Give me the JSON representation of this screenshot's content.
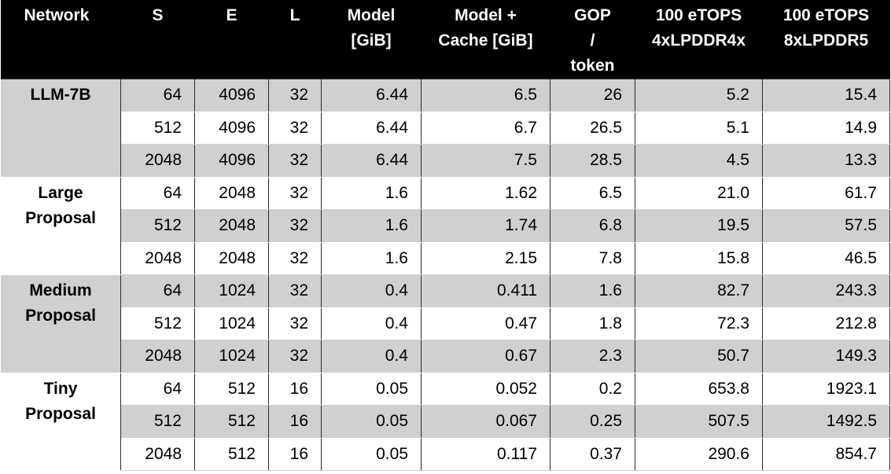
{
  "header": {
    "network": "Network",
    "s": "S",
    "e": "E",
    "l": "L",
    "model": [
      "Model",
      "[GiB]"
    ],
    "model_cache": [
      "Model +",
      "Cache [GiB]"
    ],
    "gop": [
      "GOP",
      "/",
      "token"
    ],
    "lpddr4x": [
      "100 eTOPS",
      "4xLPDDR4x"
    ],
    "lpddr5": [
      "100 eTOPS",
      "8xLPDDR5"
    ]
  },
  "groups": [
    {
      "network": [
        "LLM-7B"
      ],
      "rows": [
        {
          "s": "64",
          "e": "4096",
          "l": "32",
          "model": "6.44",
          "model_cache": "6.5",
          "gop": "26",
          "lpddr4x": "5.2",
          "lpddr5": "15.4"
        },
        {
          "s": "512",
          "e": "4096",
          "l": "32",
          "model": "6.44",
          "model_cache": "6.7",
          "gop": "26.5",
          "lpddr4x": "5.1",
          "lpddr5": "14.9"
        },
        {
          "s": "2048",
          "e": "4096",
          "l": "32",
          "model": "6.44",
          "model_cache": "7.5",
          "gop": "28.5",
          "lpddr4x": "4.5",
          "lpddr5": "13.3"
        }
      ]
    },
    {
      "network": [
        "Large",
        "Proposal"
      ],
      "rows": [
        {
          "s": "64",
          "e": "2048",
          "l": "32",
          "model": "1.6",
          "model_cache": "1.62",
          "gop": "6.5",
          "lpddr4x": "21.0",
          "lpddr5": "61.7"
        },
        {
          "s": "512",
          "e": "2048",
          "l": "32",
          "model": "1.6",
          "model_cache": "1.74",
          "gop": "6.8",
          "lpddr4x": "19.5",
          "lpddr5": "57.5"
        },
        {
          "s": "2048",
          "e": "2048",
          "l": "32",
          "model": "1.6",
          "model_cache": "2.15",
          "gop": "7.8",
          "lpddr4x": "15.8",
          "lpddr5": "46.5"
        }
      ]
    },
    {
      "network": [
        "Medium",
        "Proposal"
      ],
      "rows": [
        {
          "s": "64",
          "e": "1024",
          "l": "32",
          "model": "0.4",
          "model_cache": "0.411",
          "gop": "1.6",
          "lpddr4x": "82.7",
          "lpddr5": "243.3"
        },
        {
          "s": "512",
          "e": "1024",
          "l": "32",
          "model": "0.4",
          "model_cache": "0.47",
          "gop": "1.8",
          "lpddr4x": "72.3",
          "lpddr5": "212.8"
        },
        {
          "s": "2048",
          "e": "1024",
          "l": "32",
          "model": "0.4",
          "model_cache": "0.67",
          "gop": "2.3",
          "lpddr4x": "50.7",
          "lpddr5": "149.3"
        }
      ]
    },
    {
      "network": [
        "Tiny",
        "Proposal"
      ],
      "rows": [
        {
          "s": "64",
          "e": "512",
          "l": "16",
          "model": "0.05",
          "model_cache": "0.052",
          "gop": "0.2",
          "lpddr4x": "653.8",
          "lpddr5": "1923.1"
        },
        {
          "s": "512",
          "e": "512",
          "l": "16",
          "model": "0.05",
          "model_cache": "0.067",
          "gop": "0.25",
          "lpddr4x": "507.5",
          "lpddr5": "1492.5"
        },
        {
          "s": "2048",
          "e": "512",
          "l": "16",
          "model": "0.05",
          "model_cache": "0.117",
          "gop": "0.37",
          "lpddr4x": "290.6",
          "lpddr5": "854.7"
        }
      ]
    }
  ]
}
